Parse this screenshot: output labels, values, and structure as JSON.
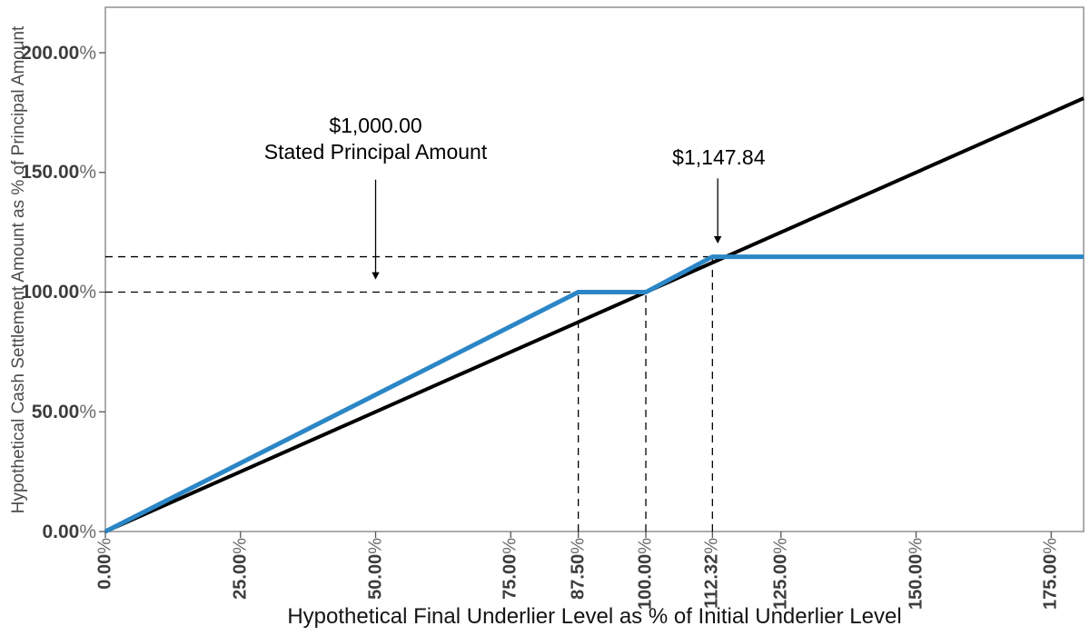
{
  "chart_data": {
    "type": "line",
    "title": "",
    "xlabel": "Hypothetical Final Underlier Level as % of Initial Underlier Level",
    "ylabel": "Hypothetical Cash Settlement Amount as % of Principal Amount",
    "xlim": [
      0,
      181
    ],
    "ylim": [
      0,
      219
    ],
    "grid": false,
    "legend": "none",
    "x_ticks": [
      {
        "value": 0,
        "label": "0.00%"
      },
      {
        "value": 25,
        "label": "25.00%"
      },
      {
        "value": 50,
        "label": "50.00%"
      },
      {
        "value": 75,
        "label": "75.00%"
      },
      {
        "value": 87.5,
        "label": "87.50%"
      },
      {
        "value": 100,
        "label": "100.00%"
      },
      {
        "value": 112.32,
        "label": "112.32%"
      },
      {
        "value": 125,
        "label": "125.00%"
      },
      {
        "value": 150,
        "label": "150.00%"
      },
      {
        "value": 175,
        "label": "175.00%"
      }
    ],
    "y_ticks": [
      {
        "value": 0,
        "label": "0.00%"
      },
      {
        "value": 50,
        "label": "50.00%"
      },
      {
        "value": 100,
        "label": "100.00%"
      },
      {
        "value": 150,
        "label": "150.00%"
      },
      {
        "value": 200,
        "label": "200.00%"
      }
    ],
    "series": [
      {
        "name": "underlier-level",
        "color": "#000000",
        "width": 4,
        "points": [
          [
            0,
            0
          ],
          [
            181,
            181
          ]
        ]
      },
      {
        "name": "cash-settlement-payoff",
        "color": "#2b86c6",
        "width": 5,
        "points": [
          [
            0,
            0
          ],
          [
            87.5,
            100
          ],
          [
            100,
            100
          ],
          [
            112.32,
            114.784
          ],
          [
            181,
            114.784
          ]
        ]
      }
    ],
    "reference_lines": {
      "horizontal": [
        {
          "y": 100,
          "x_from": 0,
          "x_to": 100
        },
        {
          "y": 114.784,
          "x_from": 0,
          "x_to": 112.32
        }
      ],
      "vertical": [
        {
          "x": 87.5,
          "y_from": 0,
          "y_to": 100
        },
        {
          "x": 100,
          "y_from": 0,
          "y_to": 100
        },
        {
          "x": 112.32,
          "y_from": 0,
          "y_to": 114.784
        }
      ]
    },
    "annotations": [
      {
        "lines": [
          "$1,000.00",
          "Stated Principal Amount"
        ],
        "text_x": 50,
        "text_bottom_y": 153,
        "arrow_x": 50,
        "arrow_from_y": 147,
        "arrow_to_y": 105.3
      },
      {
        "lines": [
          "$1,147.84"
        ],
        "text_x": 113.5,
        "text_bottom_y": 150.5,
        "arrow_x": 113.3,
        "arrow_from_y": 147.5,
        "arrow_to_y": 120.3
      }
    ]
  },
  "colors": {
    "payoff_line": "#2b86c6",
    "underlier_line": "#000000",
    "dashed_line": "#000000",
    "axis_border": "#7f7f7f",
    "tick_mark": "#555555",
    "tick_label": "#3d3d3d",
    "percent_sign": "#6b6b6b",
    "y_axis_title": "#4c4c4c",
    "x_axis_title": "#141414"
  }
}
